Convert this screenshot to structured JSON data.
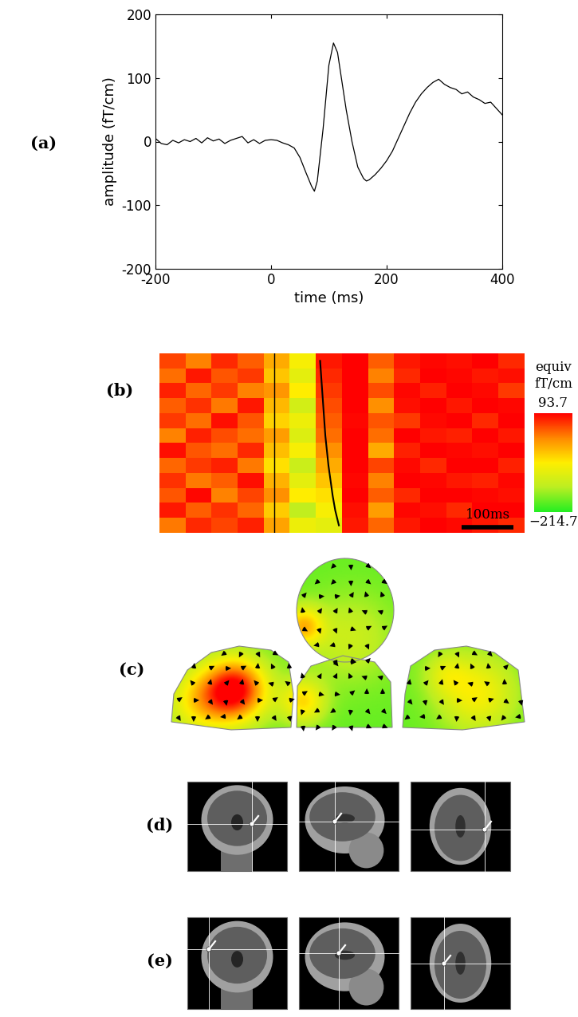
{
  "chart_data": [
    {
      "type": "line",
      "panel_label": "(a)",
      "x_label": "time (ms)",
      "y_label": "amplitude (fT/cm)",
      "color": "#000000",
      "x": [
        -200,
        -190,
        -180,
        -170,
        -160,
        -150,
        -140,
        -130,
        -120,
        -110,
        -100,
        -90,
        -80,
        -70,
        -60,
        -50,
        -40,
        -30,
        -20,
        -10,
        0,
        10,
        20,
        30,
        40,
        50,
        60,
        70,
        75,
        80,
        90,
        100,
        108,
        115,
        120,
        130,
        140,
        150,
        160,
        165,
        170,
        180,
        190,
        200,
        210,
        220,
        230,
        240,
        250,
        260,
        270,
        280,
        290,
        300,
        310,
        320,
        330,
        340,
        350,
        360,
        370,
        380,
        390,
        400
      ],
      "values": [
        5,
        -3,
        -5,
        2,
        -2,
        3,
        0,
        5,
        -2,
        6,
        1,
        4,
        -3,
        2,
        5,
        8,
        -2,
        3,
        -3,
        2,
        3,
        2,
        -2,
        -5,
        -10,
        -25,
        -48,
        -70,
        -78,
        -62,
        20,
        120,
        155,
        140,
        110,
        50,
        0,
        -40,
        -58,
        -62,
        -60,
        -52,
        -42,
        -30,
        -15,
        5,
        25,
        45,
        62,
        75,
        85,
        93,
        98,
        90,
        85,
        82,
        75,
        78,
        70,
        66,
        60,
        62,
        52,
        42
      ],
      "xlim": [
        -200,
        400
      ],
      "ylim": [
        -200,
        200
      ],
      "xticks": [
        -200,
        0,
        200,
        400
      ],
      "yticks": [
        -200,
        -100,
        0,
        100,
        200
      ]
    },
    {
      "type": "heatmap",
      "panel_label": "(b)",
      "xlim": [
        -220,
        480
      ],
      "onset": 0,
      "tick_labels": false,
      "cells": [
        [
          55,
          20,
          70,
          40,
          -10,
          -70,
          80,
          93,
          40,
          80,
          90,
          85,
          93,
          70
        ],
        [
          30,
          80,
          45,
          60,
          -30,
          -90,
          70,
          93,
          20,
          70,
          93,
          90,
          80,
          85
        ],
        [
          75,
          35,
          60,
          20,
          5,
          -60,
          60,
          93,
          50,
          90,
          75,
          93,
          88,
          60
        ],
        [
          40,
          65,
          25,
          80,
          -20,
          -110,
          50,
          93,
          10,
          85,
          93,
          80,
          93,
          90
        ],
        [
          60,
          30,
          85,
          45,
          -40,
          -80,
          40,
          90,
          45,
          60,
          88,
          93,
          70,
          93
        ],
        [
          20,
          75,
          50,
          30,
          0,
          -100,
          30,
          93,
          30,
          93,
          80,
          75,
          93,
          80
        ],
        [
          85,
          45,
          30,
          70,
          -25,
          -70,
          10,
          93,
          -10,
          75,
          93,
          90,
          85,
          93
        ],
        [
          35,
          60,
          75,
          25,
          -50,
          -120,
          -10,
          93,
          55,
          88,
          70,
          93,
          93,
          75
        ],
        [
          65,
          25,
          40,
          85,
          -15,
          -90,
          -30,
          90,
          20,
          93,
          90,
          80,
          75,
          90
        ],
        [
          45,
          90,
          20,
          55,
          10,
          -60,
          -50,
          93,
          40,
          70,
          93,
          93,
          90,
          85
        ],
        [
          80,
          40,
          65,
          35,
          -35,
          -130,
          -70,
          85,
          0,
          90,
          85,
          70,
          93,
          93
        ],
        [
          25,
          70,
          55,
          75,
          -5,
          -80,
          -90,
          80,
          35,
          80,
          93,
          88,
          80,
          70
        ]
      ],
      "sort_curve": [
        88,
        90,
        92,
        94,
        96,
        98,
        101,
        104,
        108,
        112,
        117,
        124
      ],
      "colorbar": {
        "title": "equiv\nfT/cm",
        "range": [
          -214.7,
          93.7
        ],
        "ticks": [
          {
            "value": -214.7,
            "label": "−214.7"
          },
          93.7
        ]
      },
      "scale_bar": {
        "length": 100,
        "label": "100ms"
      }
    }
  ],
  "illustrations": [
    {
      "panel_label": "(c)"
    },
    {
      "panel_label": "(d)"
    },
    {
      "panel_label": "(e)"
    }
  ]
}
